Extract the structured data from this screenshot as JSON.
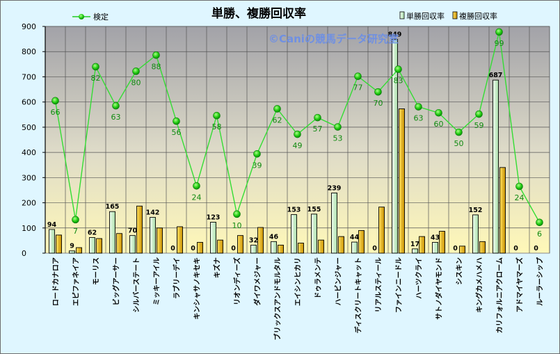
{
  "chart_data": {
    "type": "bar",
    "title": "単勝、複勝回収率",
    "watermark": "©Caniの競馬データ研究室",
    "ylim": [
      0,
      900
    ],
    "yticks": [
      0,
      100,
      200,
      300,
      400,
      500,
      600,
      700,
      800,
      900
    ],
    "categories": [
      "ロードカナロア",
      "エピファネイア",
      "モーリス",
      "ビッグアーサー",
      "シルバーステート",
      "ミッキーアイル",
      "ラブリーデイ",
      "キンシャサノキセキ",
      "キズナ",
      "リオンディーズ",
      "ダイワメジャー",
      "ブリックスアンドモルタル",
      "エイシンヒカリ",
      "ドゥラメンテ",
      "ハービンジャー",
      "ディスクリートキャット",
      "リアルスティール",
      "ファインニードル",
      "ハーツクライ",
      "サトノダイヤモンド",
      "シスキン",
      "キングカメハメハ",
      "カリフォルニアクローム",
      "アドマイヤマーズ",
      "ルーラーシップ"
    ],
    "series": [
      {
        "name": "単勝回収率",
        "kind": "bar",
        "color": "#c8ecc8",
        "values": [
          94,
          9,
          62,
          165,
          70,
          142,
          0,
          0,
          123,
          0,
          32,
          46,
          153,
          155,
          239,
          44,
          0,
          849,
          17,
          43,
          0,
          152,
          687,
          0,
          0
        ]
      },
      {
        "name": "複勝回収率",
        "kind": "bar",
        "color": "#e0b000",
        "values": [
          72,
          22,
          58,
          78,
          187,
          100,
          105,
          43,
          52,
          70,
          102,
          32,
          40,
          52,
          66,
          90,
          183,
          573,
          66,
          87,
          28,
          46,
          340,
          0,
          0
        ]
      },
      {
        "name": "検定",
        "kind": "line",
        "color": "#22cc22",
        "values": [
          605,
          133,
          740,
          585,
          722,
          786,
          524,
          267,
          546,
          155,
          394,
          573,
          472,
          538,
          501,
          702,
          640,
          730,
          581,
          557,
          480,
          552,
          878,
          265,
          122
        ],
        "labels": [
          66,
          7,
          82,
          63,
          80,
          88,
          56,
          24,
          58,
          10,
          39,
          62,
          49,
          57,
          53,
          77,
          70,
          83,
          63,
          60,
          50,
          59,
          99,
          24,
          6
        ]
      }
    ],
    "grid": true,
    "legend_position": "top"
  }
}
